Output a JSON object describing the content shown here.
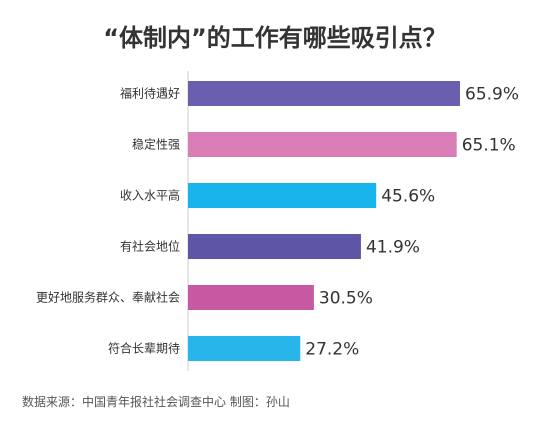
{
  "chart_data": {
    "type": "bar",
    "orientation": "horizontal",
    "title": "“体制内”的工作有哪些吸引点？",
    "categories": [
      "福利待遇好",
      "稳定性强",
      "收入水平高",
      "有社会地位",
      "更好地服务群众、奉献社会",
      "符合长辈期待"
    ],
    "values": [
      65.9,
      65.1,
      45.6,
      41.9,
      30.5,
      27.2
    ],
    "value_labels": [
      "65.9%",
      "65.1%",
      "45.6%",
      "41.9%",
      "30.5%",
      "27.2%"
    ],
    "colors": [
      "#6A5FAE",
      "#D97DB6",
      "#18B4EC",
      "#5F55A6",
      "#C659A2",
      "#28B6EA"
    ],
    "xlim": [
      0,
      65.9
    ],
    "grid": false,
    "legend": "none",
    "source": "数据来源：中国青年报社社会调查中心  制图：孙山"
  }
}
